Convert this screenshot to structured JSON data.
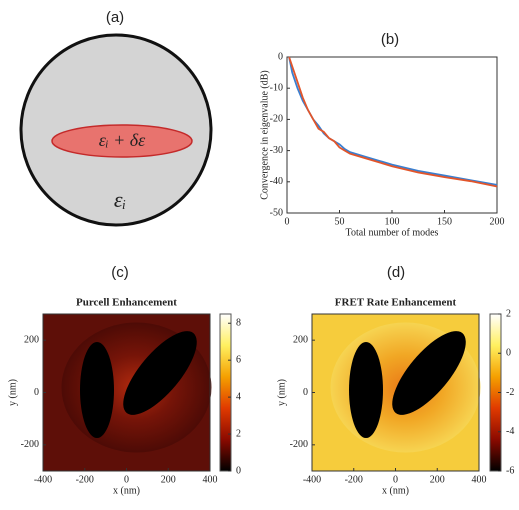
{
  "diagram": {
    "label": "(a)",
    "inner_label": "εᵢ + δε",
    "outer_label": "εᵢ"
  },
  "chart_data": [
    {
      "type": "line",
      "label": "(b)",
      "xlabel": "Total number of modes",
      "ylabel": "Convergence in eigenvalue (dB)",
      "x": [
        2,
        5,
        10,
        15,
        20,
        25,
        30,
        35,
        40,
        45,
        50,
        55,
        60,
        75,
        100,
        125,
        150,
        175,
        200
      ],
      "series": [
        {
          "color": "#3a7fd0",
          "values": [
            0,
            -5,
            -10,
            -14,
            -17,
            -20,
            -22,
            -24.5,
            -26,
            -27,
            -28,
            -29.5,
            -30.5,
            -32,
            -34.5,
            -36.5,
            -38,
            -39.5,
            -41
          ]
        },
        {
          "color": "#e2552a",
          "values": [
            0,
            -3,
            -8,
            -13,
            -17,
            -20,
            -23,
            -24,
            -26,
            -27,
            -29,
            -30,
            -31,
            -32.5,
            -35,
            -37,
            -38.5,
            -39.8,
            -41.5
          ]
        }
      ],
      "xlim": [
        0,
        200
      ],
      "ylim": [
        -50,
        0
      ],
      "xticks": [
        0,
        50,
        100,
        150,
        200
      ],
      "yticks": [
        0,
        -10,
        -20,
        -30,
        -40,
        -50
      ]
    },
    {
      "type": "heatmap",
      "label": "(c)",
      "title": "Purcell Enhancement",
      "xlabel": "x (nm)",
      "ylabel": "y (nm)",
      "xlim": [
        -400,
        400
      ],
      "ylim": [
        -300,
        300
      ],
      "xticks": [
        -400,
        -200,
        0,
        200,
        400
      ],
      "yticks": [
        200,
        0,
        -200
      ],
      "clim": [
        0,
        8.5
      ],
      "cticks": [
        0,
        2,
        4,
        6,
        8
      ],
      "colormap": [
        "#000000",
        "#8b0a00",
        "#e03a00",
        "#f5a000",
        "#fff060",
        "#ffffff"
      ],
      "background": "#5e0f08"
    },
    {
      "type": "heatmap",
      "label": "(d)",
      "title": "FRET Rate Enhancement",
      "xlabel": "x (nm)",
      "ylabel": "y (nm)",
      "xlim": [
        -400,
        400
      ],
      "ylim": [
        -300,
        300
      ],
      "xticks": [
        -400,
        -200,
        0,
        200,
        400
      ],
      "yticks": [
        200,
        0,
        -200
      ],
      "clim": [
        -6,
        2
      ],
      "cticks": [
        2,
        0,
        -2,
        -4,
        -6
      ],
      "colormap": [
        "#000000",
        "#8b0a00",
        "#e03a00",
        "#f5a000",
        "#fff060",
        "#ffffff"
      ],
      "background": "#f6cc3c"
    }
  ]
}
